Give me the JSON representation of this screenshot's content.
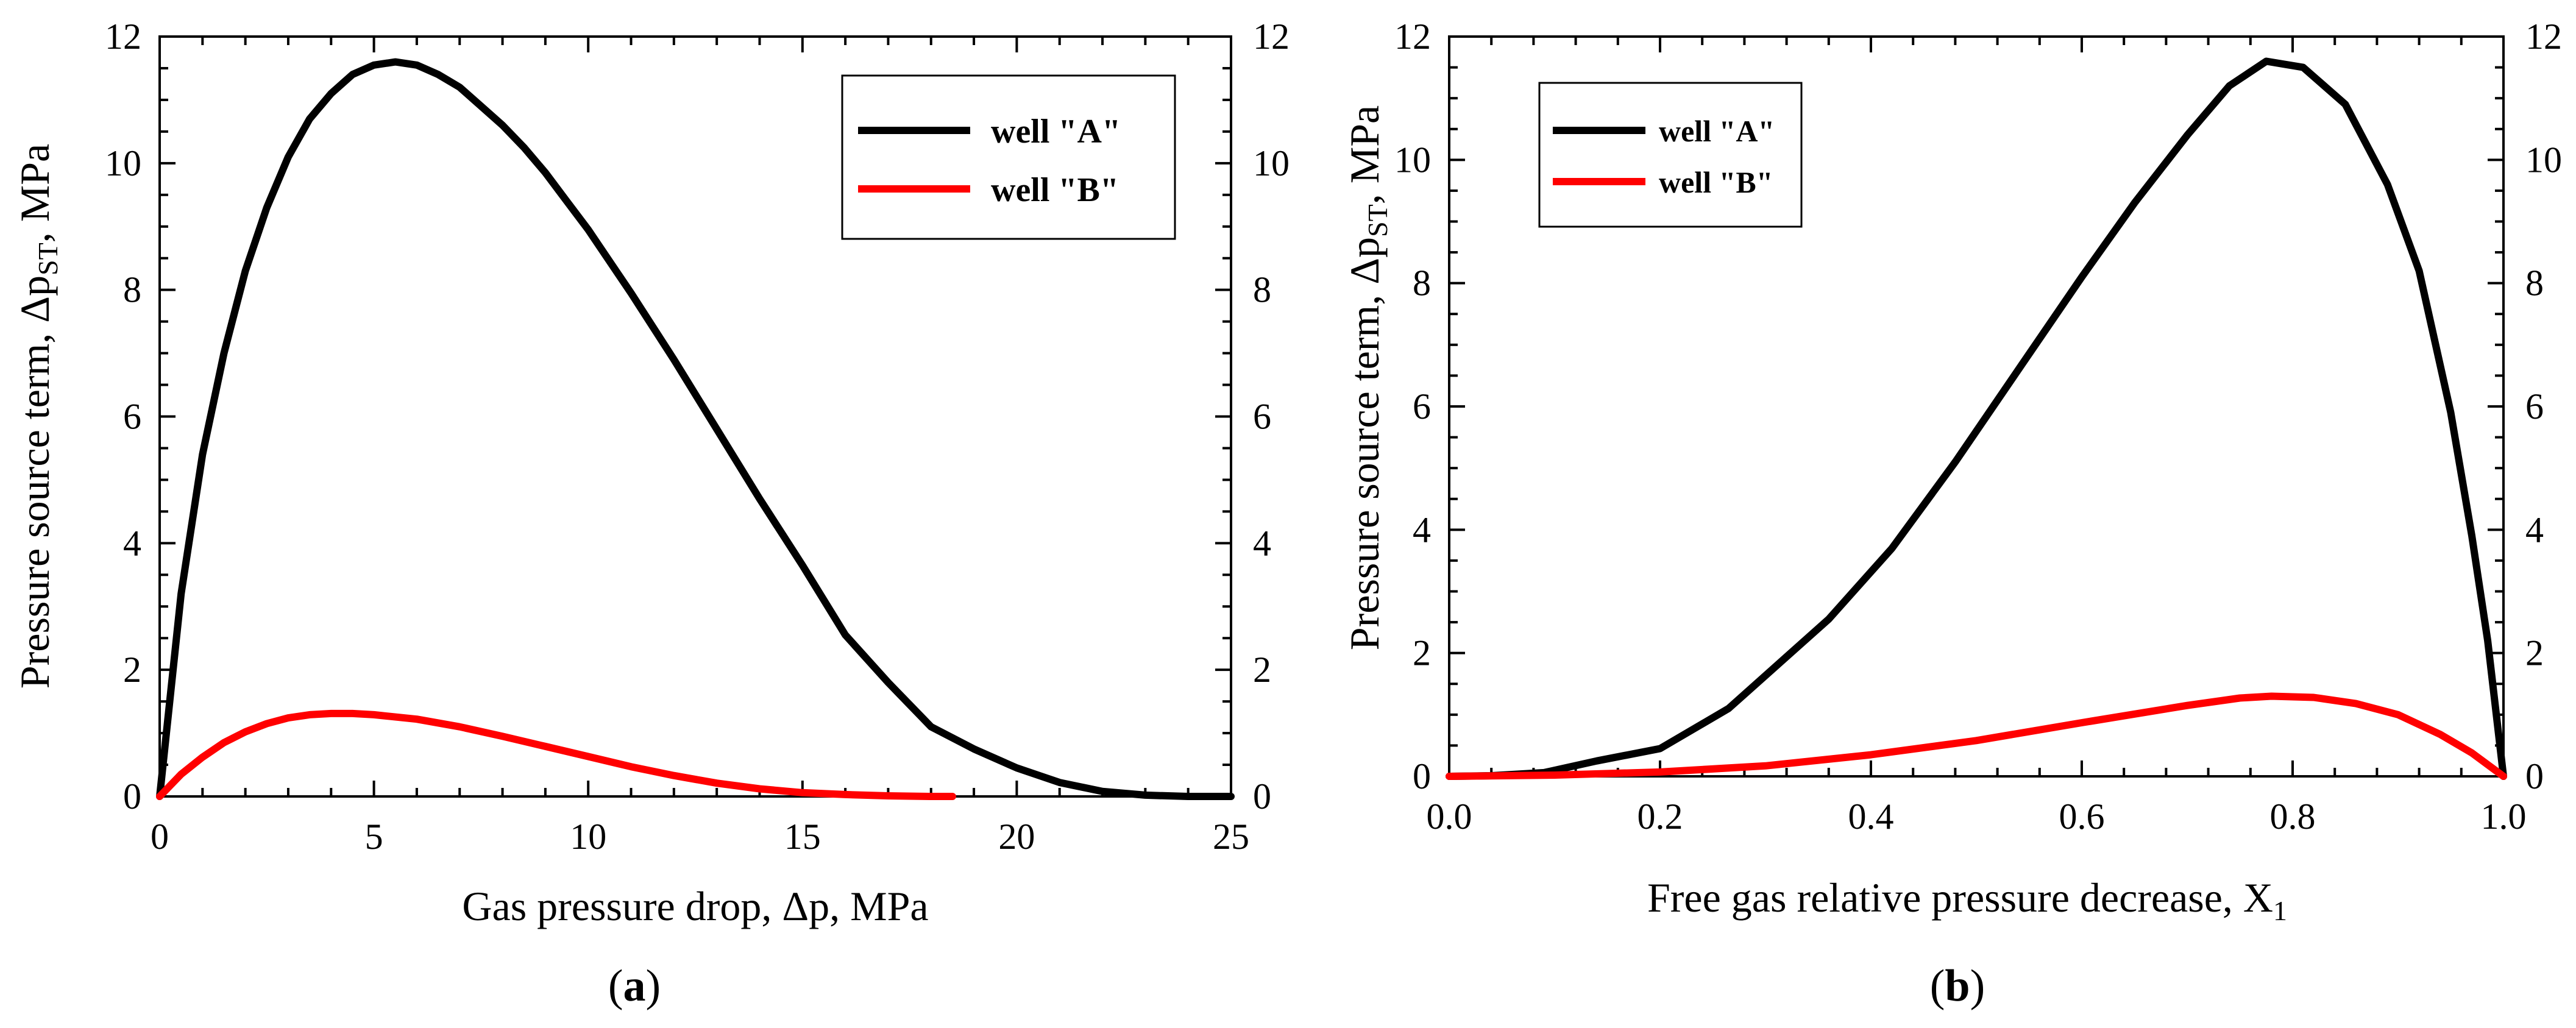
{
  "chart_data": [
    {
      "type": "line",
      "panel_label": "a",
      "title": "",
      "xlabel": "Gas pressure drop, Δp, MPa",
      "ylabel_main": "Pressure source term, Δp",
      "ylabel_sub": "ST",
      "ylabel_tail": ", MPa",
      "xlim": [
        0,
        25
      ],
      "ylim": [
        0,
        12
      ],
      "xticks": [
        0,
        5,
        10,
        15,
        20,
        25
      ],
      "yticks": [
        0,
        2,
        4,
        6,
        8,
        10,
        12
      ],
      "xtick_labels": [
        "0",
        "5",
        "10",
        "15",
        "20",
        "25"
      ],
      "ytick_labels": [
        "0",
        "2",
        "4",
        "6",
        "8",
        "10",
        "12"
      ],
      "legend_position": "top-right",
      "series": [
        {
          "name": "well \"A\"",
          "color": "#000000",
          "x": [
            0,
            0.5,
            1,
            1.5,
            2,
            2.5,
            3,
            3.5,
            4,
            4.5,
            5,
            5.5,
            6,
            6.5,
            7,
            7.5,
            8,
            8.5,
            9,
            9.5,
            10,
            11,
            12,
            13,
            14,
            15,
            16,
            17,
            18,
            19,
            20,
            21,
            22,
            23,
            24,
            25
          ],
          "values": [
            0,
            3.2,
            5.4,
            7.0,
            8.3,
            9.3,
            10.1,
            10.7,
            11.1,
            11.4,
            11.55,
            11.6,
            11.55,
            11.4,
            11.2,
            10.9,
            10.6,
            10.25,
            9.85,
            9.4,
            8.95,
            7.95,
            6.9,
            5.8,
            4.7,
            3.65,
            2.55,
            1.8,
            1.1,
            0.75,
            0.45,
            0.22,
            0.08,
            0.02,
            0.0,
            0.0
          ]
        },
        {
          "name": "well \"B\"",
          "color": "#ff0000",
          "x": [
            0,
            0.5,
            1,
            1.5,
            2,
            2.5,
            3,
            3.5,
            4,
            4.5,
            5,
            6,
            7,
            8,
            9,
            10,
            11,
            12,
            13,
            14,
            15,
            16,
            17,
            18,
            18.5
          ],
          "values": [
            0,
            0.35,
            0.62,
            0.85,
            1.02,
            1.15,
            1.24,
            1.29,
            1.31,
            1.31,
            1.29,
            1.22,
            1.1,
            0.95,
            0.79,
            0.63,
            0.47,
            0.33,
            0.21,
            0.12,
            0.06,
            0.03,
            0.01,
            0.0,
            0.0
          ]
        }
      ]
    },
    {
      "type": "line",
      "panel_label": "b",
      "title": "",
      "xlabel_main": "Free gas relative pressure decrease, X",
      "xlabel_sub": "1",
      "ylabel_main": "Pressure source term, Δp",
      "ylabel_sub": "ST",
      "ylabel_tail": ", MPa",
      "xlim": [
        0,
        1
      ],
      "ylim": [
        0,
        12
      ],
      "xticks": [
        0,
        0.2,
        0.4,
        0.6,
        0.8,
        1.0
      ],
      "yticks": [
        0,
        2,
        4,
        6,
        8,
        10,
        12
      ],
      "xtick_labels": [
        "0.0",
        "0.2",
        "0.4",
        "0.6",
        "0.8",
        "1.0"
      ],
      "ytick_labels": [
        "0",
        "2",
        "4",
        "6",
        "8",
        "10",
        "12"
      ],
      "legend_position": "top-left",
      "series": [
        {
          "name": "well \"A\"",
          "color": "#000000",
          "x": [
            0,
            0.04,
            0.09,
            0.14,
            0.2,
            0.265,
            0.36,
            0.42,
            0.48,
            0.54,
            0.6,
            0.65,
            0.7,
            0.74,
            0.775,
            0.81,
            0.85,
            0.89,
            0.92,
            0.95,
            0.97,
            0.985,
            1.0
          ],
          "values": [
            0,
            0.01,
            0.06,
            0.25,
            0.45,
            1.1,
            2.55,
            3.7,
            5.1,
            6.6,
            8.1,
            9.3,
            10.4,
            11.2,
            11.6,
            11.5,
            10.9,
            9.6,
            8.2,
            5.9,
            3.9,
            2.2,
            0.0
          ]
        },
        {
          "name": "well \"B\"",
          "color": "#ff0000",
          "x": [
            0,
            0.1,
            0.2,
            0.3,
            0.4,
            0.5,
            0.6,
            0.7,
            0.75,
            0.78,
            0.82,
            0.86,
            0.9,
            0.94,
            0.97,
            1.0
          ],
          "values": [
            0,
            0.02,
            0.07,
            0.17,
            0.35,
            0.58,
            0.87,
            1.15,
            1.27,
            1.3,
            1.28,
            1.18,
            1.0,
            0.68,
            0.38,
            0.0
          ]
        }
      ]
    }
  ]
}
